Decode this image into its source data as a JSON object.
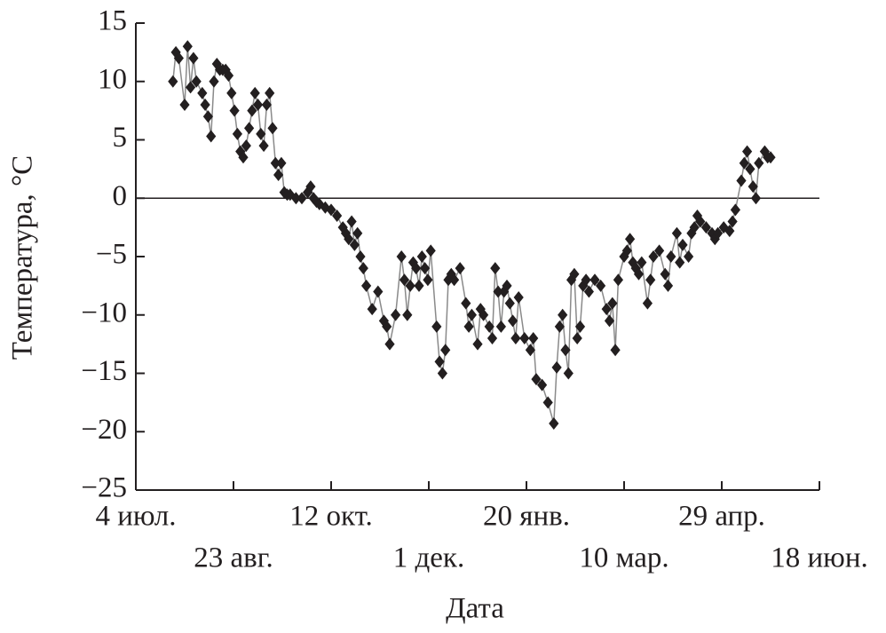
{
  "chart_data": {
    "type": "line",
    "x_label": "Дата",
    "y_label": "Температура, °C",
    "x": [
      19,
      20.5,
      22,
      25,
      26.5,
      28,
      29.5,
      31,
      34,
      35.5,
      37,
      38.5,
      40,
      41.5,
      43,
      44.5,
      46,
      47.5,
      49,
      50.5,
      52,
      53.5,
      55,
      56.5,
      58,
      59.5,
      61,
      62.5,
      64,
      65.5,
      67,
      68.5,
      70,
      71.5,
      73,
      74.5,
      76,
      77.5,
      79,
      82,
      85,
      88,
      89.5,
      91,
      92.5,
      94,
      97,
      100,
      103,
      106,
      107.5,
      109,
      110.5,
      112,
      113.5,
      115,
      116.5,
      118,
      121,
      124,
      127,
      128.5,
      130,
      133,
      136,
      137.5,
      139,
      140.5,
      142,
      143.5,
      145,
      146.5,
      148,
      149.5,
      151,
      154,
      155.5,
      157,
      158.5,
      160,
      161.5,
      163,
      166,
      169,
      170.5,
      172,
      175,
      176.5,
      178,
      181,
      182.5,
      184,
      185.5,
      187,
      188.5,
      190,
      191.5,
      193,
      194.5,
      196,
      199,
      202,
      203.5,
      205,
      208,
      211,
      214,
      215.5,
      217,
      218.5,
      220,
      221.5,
      223,
      224.5,
      226,
      227.5,
      229,
      230.5,
      232,
      235,
      238,
      241,
      242.5,
      244,
      245.5,
      247,
      250,
      251.5,
      253,
      254.5,
      256,
      257.5,
      259,
      262,
      263.5,
      265,
      268,
      271,
      272.5,
      274,
      277,
      278.5,
      280,
      283,
      284.5,
      286,
      287.5,
      289,
      292,
      295,
      296.5,
      298,
      301,
      304,
      305.5,
      307,
      310,
      311.5,
      313,
      314.5,
      316,
      317.5,
      319,
      322,
      323.5,
      325
    ],
    "series": [
      {
        "color": "#231f20",
        "line_color": "#8a8a8a",
        "values": [
          10,
          12.5,
          12,
          8,
          13,
          9.5,
          12,
          10,
          9,
          8,
          7,
          5.3,
          10,
          11.5,
          11,
          11,
          11,
          10.5,
          9,
          7.5,
          5.5,
          4,
          3.5,
          4.5,
          6,
          7.5,
          9,
          8,
          5.5,
          4.5,
          8,
          9,
          6,
          3,
          2,
          3,
          0.5,
          0.3,
          0.3,
          0,
          0,
          0.5,
          1,
          0,
          -0.3,
          -0.5,
          -0.8,
          -1,
          -1.5,
          -2.5,
          -3,
          -3.5,
          -2,
          -4,
          -3,
          -5,
          -6,
          -7.5,
          -9.5,
          -8,
          -10.5,
          -11,
          -12.5,
          -10,
          -5,
          -7,
          -10,
          -7.5,
          -5.5,
          -6,
          -7.5,
          -5,
          -6,
          -7,
          -4.5,
          -11,
          -14,
          -15,
          -13,
          -7,
          -6.5,
          -7,
          -6,
          -9,
          -11,
          -10,
          -12.5,
          -9.5,
          -10,
          -11,
          -12,
          -6,
          -8,
          -11,
          -8,
          -7.5,
          -9,
          -10.5,
          -12,
          -8.5,
          -12,
          -13,
          -12,
          -15.5,
          -16,
          -17.5,
          -19.3,
          -14.5,
          -11,
          -10,
          -13,
          -15,
          -7,
          -6.5,
          -12,
          -11,
          -7.5,
          -7,
          -8,
          -7,
          -7.5,
          -9.5,
          -10.5,
          -9,
          -13,
          -7,
          -5,
          -4.5,
          -3.5,
          -5.5,
          -6,
          -6.5,
          -5.5,
          -9,
          -7,
          -5,
          -4.5,
          -6.5,
          -7.5,
          -5,
          -3,
          -5.5,
          -4,
          -5,
          -3,
          -2.5,
          -1.5,
          -2,
          -2.5,
          -3,
          -3.5,
          -3,
          -2.5,
          -2.8,
          -2,
          -1,
          1.5,
          3,
          4,
          2.5,
          1,
          0,
          3,
          4,
          3.5,
          3.5
        ]
      }
    ],
    "xlim": [
      0,
      350
    ],
    "xticks": [
      {
        "value": 0,
        "label": "4 июл."
      },
      {
        "value": 50,
        "label": "23 авг."
      },
      {
        "value": 100,
        "label": "12 окт."
      },
      {
        "value": 150,
        "label": "1 дек."
      },
      {
        "value": 200,
        "label": "20 янв."
      },
      {
        "value": 250,
        "label": "10 мар."
      },
      {
        "value": 300,
        "label": "29 апр."
      },
      {
        "value": 350,
        "label": "18 июн."
      }
    ],
    "ylim": [
      -25,
      15
    ],
    "yticks": [
      {
        "value": -25,
        "label": "−25"
      },
      {
        "value": -20,
        "label": "−20"
      },
      {
        "value": -15,
        "label": "−15"
      },
      {
        "value": -10,
        "label": "−10"
      },
      {
        "value": -5,
        "label": "−5"
      },
      0,
      5,
      10,
      15
    ],
    "zero_line": true
  }
}
